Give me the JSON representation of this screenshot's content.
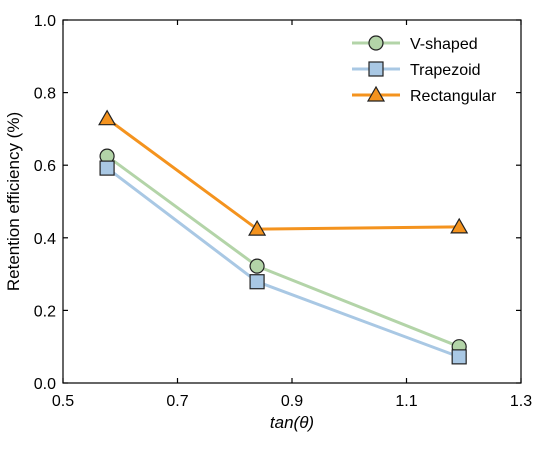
{
  "chart_data": {
    "type": "line",
    "xlabel": "tan(θ)",
    "ylabel": "Retention efficiency (%)",
    "xlim": [
      0.5,
      1.3
    ],
    "ylim": [
      0.0,
      1.0
    ],
    "xticks": [
      0.5,
      0.7,
      0.9,
      1.1,
      1.3
    ],
    "xtick_labels": [
      "0.5",
      "0.7",
      "0.9",
      "1.1",
      "1.3"
    ],
    "yticks": [
      0.0,
      0.2,
      0.4,
      0.6,
      0.8,
      1.0
    ],
    "ytick_labels": [
      "0.0",
      "0.2",
      "0.4",
      "0.6",
      "0.8",
      "1.0"
    ],
    "grid": false,
    "legend_position": "top-right",
    "x": [
      0.577,
      0.839,
      1.192
    ],
    "series": [
      {
        "name": "V-shaped",
        "values": [
          0.625,
          0.322,
          0.1
        ],
        "line_color": "#b3d4a8",
        "marker": "circle",
        "marker_fill": "#b3d4a8"
      },
      {
        "name": "Trapezoid",
        "values": [
          0.592,
          0.279,
          0.072
        ],
        "line_color": "#a9c8e4",
        "marker": "square",
        "marker_fill": "#a9c8e4"
      },
      {
        "name": "Rectangular",
        "values": [
          0.728,
          0.424,
          0.43
        ],
        "line_color": "#f4931e",
        "marker": "triangle",
        "marker_fill": "#f4931e"
      }
    ]
  }
}
